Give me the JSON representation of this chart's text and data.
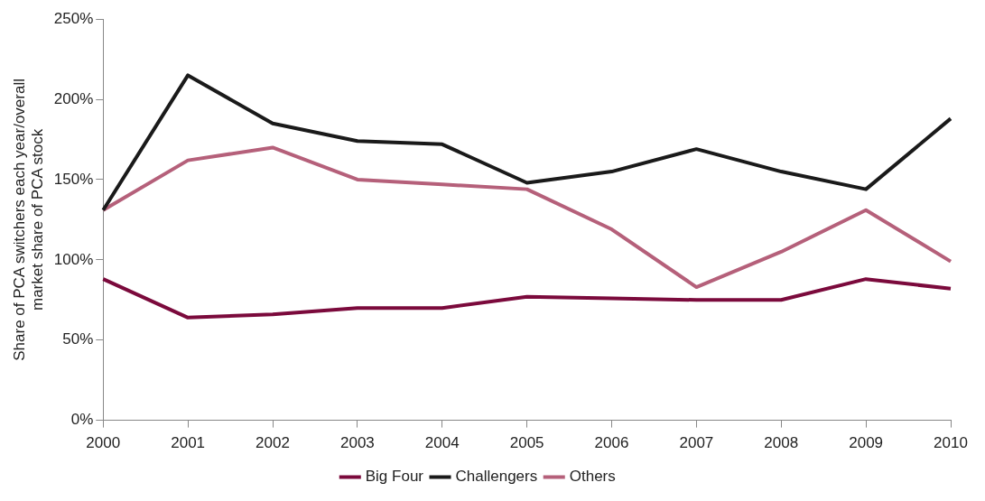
{
  "chart_data": {
    "type": "line",
    "ylabel": "Share of PCA switchers each year/overall\nmarket share of PCA stock",
    "categories": [
      "2000",
      "2001",
      "2002",
      "2003",
      "2004",
      "2005",
      "2006",
      "2007",
      "2008",
      "2009",
      "2010"
    ],
    "series": [
      {
        "name": "Big Four",
        "color": "#7b0a3c",
        "values": [
          88,
          64,
          66,
          70,
          70,
          77,
          76,
          75,
          75,
          88,
          82
        ]
      },
      {
        "name": "Challengers",
        "color": "#1a1a1a",
        "values": [
          131,
          215,
          185,
          174,
          172,
          148,
          155,
          169,
          155,
          144,
          188
        ]
      },
      {
        "name": "Others",
        "color": "#b5607a",
        "values": [
          131,
          162,
          170,
          150,
          147,
          144,
          119,
          83,
          105,
          131,
          99
        ]
      }
    ],
    "ylim": [
      0,
      250
    ],
    "yticks": [
      {
        "value": 0,
        "label": "0%"
      },
      {
        "value": 50,
        "label": "50%"
      },
      {
        "value": 100,
        "label": "100%"
      },
      {
        "value": 150,
        "label": "150%"
      },
      {
        "value": 200,
        "label": "200%"
      },
      {
        "value": 250,
        "label": "250%"
      }
    ],
    "grid": false,
    "legend": "bottom",
    "line_style": "solid"
  }
}
